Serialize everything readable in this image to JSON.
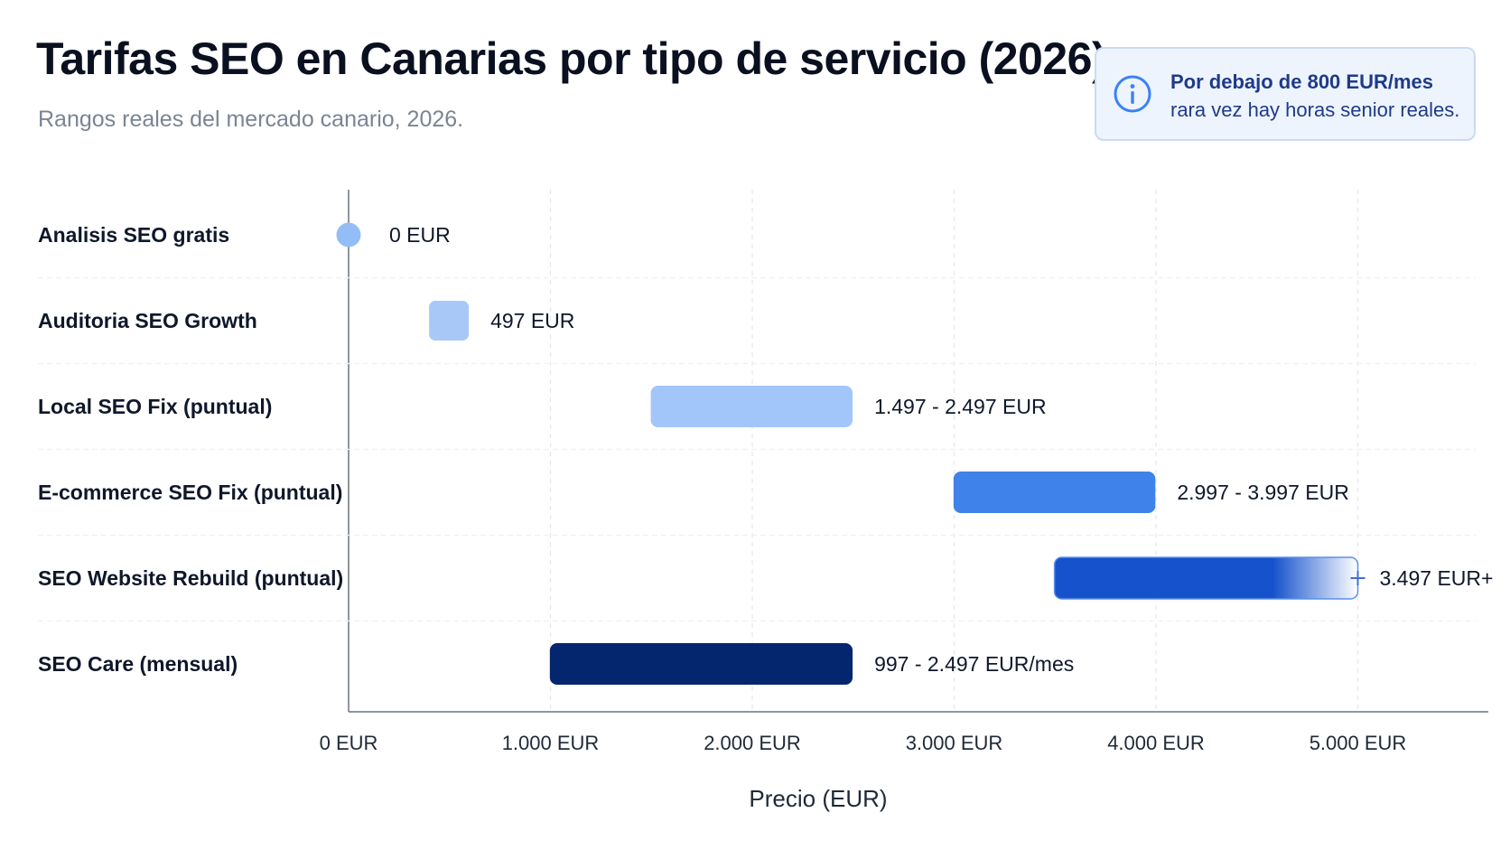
{
  "header": {
    "title": "Tarifas SEO en Canarias por tipo de servicio (2026)",
    "subtitle": "Rangos reales del mercado canario, 2026."
  },
  "callout": {
    "icon": "info-icon",
    "line1": "Por debajo de 800 EUR/mes",
    "line2": "rara vez hay horas senior reales."
  },
  "chart_data": {
    "type": "bar",
    "orientation": "horizontal-range",
    "title": "Tarifas SEO en Canarias por tipo de servicio (2026)",
    "subtitle": "Rangos reales del mercado canario, 2026.",
    "xlabel": "Precio (EUR)",
    "ylabel": "",
    "xlim": [
      0,
      5500
    ],
    "xticks": [
      0,
      1000,
      2000,
      3000,
      4000,
      5000
    ],
    "xtick_labels": [
      "0 EUR",
      "1.000 EUR",
      "2.000 EUR",
      "3.000 EUR",
      "4.000 EUR",
      "5.000 EUR"
    ],
    "grid": "vertical dashed",
    "categories": [
      "Analisis SEO gratis",
      "Auditoria SEO Growth",
      "Local SEO Fix (puntual)",
      "E-commerce SEO Fix (puntual)",
      "SEO Website Rebuild (puntual)",
      "SEO Care (mensual)"
    ],
    "ranges": [
      {
        "start": 0,
        "end": 0,
        "label": "0 EUR",
        "color": "#93bdf6",
        "shape": "point"
      },
      {
        "start": 497,
        "end": 497,
        "label": "497 EUR",
        "color": "#a8c8f8",
        "shape": "point"
      },
      {
        "start": 1497,
        "end": 2497,
        "label": "1.497 - 2.497 EUR",
        "color": "#a3c6fa",
        "shape": "range"
      },
      {
        "start": 2997,
        "end": 3997,
        "label": "2.997 - 3.997 EUR",
        "color": "#3f82ea",
        "shape": "range"
      },
      {
        "start": 3497,
        "end": null,
        "label": "3.497 EUR+",
        "color": "#1552cc",
        "shape": "open-ended"
      },
      {
        "start": 997,
        "end": 2497,
        "label": "997 - 2.497 EUR/mes",
        "color": "#04266f",
        "shape": "range"
      }
    ]
  }
}
